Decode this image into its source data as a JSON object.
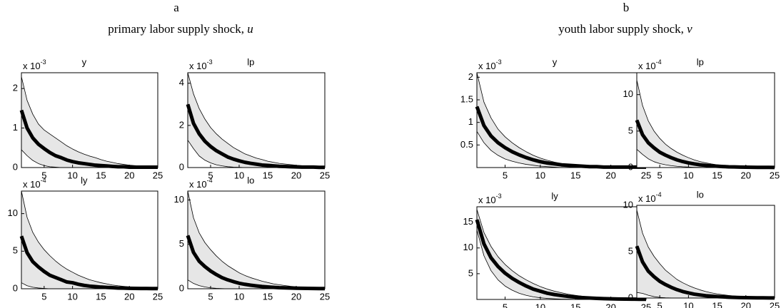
{
  "panels": [
    {
      "label": "a",
      "title": "primary labor supply shock, ",
      "title_var": "u"
    },
    {
      "label": "b",
      "title": "youth labor supply shock, ",
      "title_var": "v"
    }
  ],
  "chart_data": [
    {
      "type": "line",
      "title": "y",
      "scale_text": "x 10",
      "scale_exponent": "-3",
      "x": [
        1,
        2,
        3,
        4,
        5,
        6,
        7,
        8,
        9,
        10,
        11,
        12,
        13,
        14,
        15,
        16,
        17,
        18,
        19,
        20,
        21,
        22,
        23,
        24,
        25
      ],
      "xlim": [
        1,
        25
      ],
      "xticks": [
        5,
        10,
        15,
        20,
        25
      ],
      "ylim": [
        0,
        2.4
      ],
      "yticks": [
        0,
        1,
        2
      ],
      "series": [
        {
          "color": "#000000",
          "values": [
            1.45,
            1.0,
            0.75,
            0.59,
            0.48,
            0.38,
            0.3,
            0.25,
            0.19,
            0.15,
            0.12,
            0.1,
            0.08,
            0.06,
            0.05,
            0.04,
            0.03,
            0.02,
            0.02,
            0.01,
            0.01,
            0.01,
            0.01,
            0.01,
            0.01
          ]
        }
      ],
      "band": {
        "color": "#e6e6e6",
        "upper": [
          2.3,
          1.7,
          1.35,
          1.1,
          0.95,
          0.85,
          0.75,
          0.65,
          0.55,
          0.47,
          0.4,
          0.34,
          0.29,
          0.25,
          0.2,
          0.16,
          0.13,
          0.1,
          0.08,
          0.06,
          0.05,
          0.04,
          0.03,
          0.02,
          0.02
        ],
        "lower": [
          0.45,
          0.3,
          0.18,
          0.1,
          0.05,
          0.02,
          0.01,
          0,
          0,
          0,
          0,
          0,
          0,
          0,
          0,
          0,
          0,
          0,
          0,
          0,
          0,
          0,
          0,
          0,
          0
        ]
      }
    },
    {
      "type": "line",
      "title": "lp",
      "scale_text": "x 10",
      "scale_exponent": "-3",
      "x": [
        1,
        2,
        3,
        4,
        5,
        6,
        7,
        8,
        9,
        10,
        11,
        12,
        13,
        14,
        15,
        16,
        17,
        18,
        19,
        20,
        21,
        22,
        23,
        24,
        25
      ],
      "xlim": [
        1,
        25
      ],
      "xticks": [
        5,
        10,
        15,
        20,
        25
      ],
      "ylim": [
        0,
        4.5
      ],
      "yticks": [
        0,
        2,
        4
      ],
      "series": [
        {
          "color": "#000000",
          "values": [
            3.0,
            2.1,
            1.6,
            1.25,
            1.0,
            0.8,
            0.65,
            0.5,
            0.4,
            0.32,
            0.25,
            0.2,
            0.16,
            0.12,
            0.1,
            0.08,
            0.06,
            0.05,
            0.04,
            0.03,
            0.02,
            0.02,
            0.02,
            0.01,
            0.01
          ]
        }
      ],
      "band": {
        "color": "#e6e6e6",
        "upper": [
          4.5,
          3.5,
          2.8,
          2.3,
          1.9,
          1.6,
          1.35,
          1.15,
          0.95,
          0.8,
          0.65,
          0.55,
          0.45,
          0.38,
          0.3,
          0.25,
          0.2,
          0.17,
          0.14,
          0.11,
          0.09,
          0.07,
          0.05,
          0.04,
          0.03
        ],
        "lower": [
          1.3,
          0.9,
          0.55,
          0.35,
          0.22,
          0.13,
          0.08,
          0.04,
          0.02,
          0.01,
          0,
          0,
          0,
          0,
          0,
          0,
          0,
          0,
          0,
          0,
          0,
          0,
          0,
          0,
          0
        ]
      }
    },
    {
      "type": "line",
      "title": "ly",
      "scale_text": "x 10",
      "scale_exponent": "-4",
      "x": [
        1,
        2,
        3,
        4,
        5,
        6,
        7,
        8,
        9,
        10,
        11,
        12,
        13,
        14,
        15,
        16,
        17,
        18,
        19,
        20,
        21,
        22,
        23,
        24,
        25
      ],
      "xlim": [
        1,
        25
      ],
      "xticks": [
        5,
        10,
        15,
        20,
        25
      ],
      "ylim": [
        0,
        13
      ],
      "yticks": [
        0,
        5,
        10
      ],
      "series": [
        {
          "color": "#000000",
          "values": [
            7,
            4.8,
            3.6,
            2.9,
            2.3,
            1.8,
            1.5,
            1.2,
            0.9,
            0.8,
            0.6,
            0.45,
            0.35,
            0.28,
            0.22,
            0.18,
            0.14,
            0.1,
            0.08,
            0.06,
            0.05,
            0.04,
            0.03,
            0.02,
            0.02
          ]
        }
      ],
      "band": {
        "color": "#e6e6e6",
        "upper": [
          13,
          9.5,
          7.5,
          6.2,
          5.2,
          4.4,
          3.7,
          3.1,
          2.6,
          2.2,
          1.8,
          1.5,
          1.2,
          1,
          0.8,
          0.65,
          0.5,
          0.4,
          0.32,
          0.25,
          0.2,
          0.15,
          0.12,
          0.1,
          0.08
        ],
        "lower": [
          0.8,
          0.4,
          0.2,
          0.1,
          0.05,
          0,
          0,
          0,
          0,
          0,
          0,
          0,
          0,
          0,
          0,
          0,
          0,
          0,
          0,
          0,
          0,
          0,
          0,
          0,
          0
        ]
      }
    },
    {
      "type": "line",
      "title": "lo",
      "scale_text": "x 10",
      "scale_exponent": "-4",
      "x": [
        1,
        2,
        3,
        4,
        5,
        6,
        7,
        8,
        9,
        10,
        11,
        12,
        13,
        14,
        15,
        16,
        17,
        18,
        19,
        20,
        21,
        22,
        23,
        24,
        25
      ],
      "xlim": [
        1,
        25
      ],
      "xticks": [
        5,
        10,
        15,
        20,
        25
      ],
      "ylim": [
        0,
        11
      ],
      "yticks": [
        0,
        5,
        10
      ],
      "series": [
        {
          "color": "#000000",
          "values": [
            6,
            4.1,
            3.1,
            2.5,
            2.0,
            1.6,
            1.25,
            1.0,
            0.8,
            0.62,
            0.5,
            0.4,
            0.32,
            0.25,
            0.2,
            0.16,
            0.12,
            0.1,
            0.08,
            0.06,
            0.05,
            0.04,
            0.03,
            0.02,
            0.02
          ]
        }
      ],
      "band": {
        "color": "#e6e6e6",
        "upper": [
          11,
          8,
          6.3,
          5.2,
          4.4,
          3.7,
          3.1,
          2.6,
          2.2,
          1.8,
          1.5,
          1.25,
          1.05,
          0.85,
          0.7,
          0.55,
          0.45,
          0.36,
          0.28,
          0.22,
          0.18,
          0.14,
          0.11,
          0.09,
          0.07
        ],
        "lower": [
          1.0,
          0.6,
          0.35,
          0.2,
          0.1,
          0.05,
          0.02,
          0,
          0,
          0,
          0,
          0,
          0,
          0,
          0,
          0,
          0,
          0,
          0,
          0,
          0,
          0,
          0,
          0,
          0
        ]
      }
    },
    {
      "type": "line",
      "title": "y",
      "scale_text": "x 10",
      "scale_exponent": "-3",
      "x": [
        1,
        2,
        3,
        4,
        5,
        6,
        7,
        8,
        9,
        10,
        11,
        12,
        13,
        14,
        15,
        16,
        17,
        18,
        19,
        20,
        21,
        22,
        23,
        24,
        25
      ],
      "xlim": [
        1,
        25
      ],
      "xticks": [
        5,
        10,
        15,
        20,
        25
      ],
      "ylim": [
        0,
        2.1
      ],
      "yticks": [
        0.5,
        1,
        1.5,
        2
      ],
      "series": [
        {
          "color": "#000000",
          "values": [
            1.35,
            0.93,
            0.7,
            0.55,
            0.44,
            0.35,
            0.28,
            0.22,
            0.17,
            0.13,
            0.1,
            0.08,
            0.06,
            0.05,
            0.04,
            0.03,
            0.02,
            0.02,
            0.01,
            0.01,
            0.01,
            0.01,
            0.01,
            0.01,
            0.01
          ]
        }
      ],
      "band": {
        "color": "#e6e6e6",
        "upper": [
          2.1,
          1.45,
          1.1,
          0.85,
          0.68,
          0.55,
          0.44,
          0.35,
          0.27,
          0.21,
          0.16,
          0.12,
          0.09,
          0.07,
          0.05,
          0.04,
          0.03,
          0.02,
          0.02,
          0.01,
          0.01,
          0.01,
          0.01,
          0.01,
          0.01
        ],
        "lower": [
          0.8,
          0.55,
          0.38,
          0.27,
          0.19,
          0.14,
          0.1,
          0.07,
          0.05,
          0.03,
          0.02,
          0.01,
          0,
          0,
          0,
          0,
          0,
          0,
          0,
          0,
          0,
          0,
          0,
          0,
          0
        ]
      }
    },
    {
      "type": "line",
      "title": "lp",
      "scale_text": "x 10",
      "scale_exponent": "-4",
      "x": [
        1,
        2,
        3,
        4,
        5,
        6,
        7,
        8,
        9,
        10,
        11,
        12,
        13,
        14,
        15,
        16,
        17,
        18,
        19,
        20,
        21,
        22,
        23,
        24,
        25
      ],
      "xlim": [
        1,
        25
      ],
      "xticks": [
        5,
        10,
        15,
        20,
        25
      ],
      "ylim": [
        0,
        13
      ],
      "yticks": [
        0,
        5,
        10
      ],
      "series": [
        {
          "color": "#000000",
          "values": [
            6.5,
            4.5,
            3.4,
            2.7,
            2.1,
            1.7,
            1.35,
            1.05,
            0.82,
            0.64,
            0.5,
            0.38,
            0.3,
            0.23,
            0.18,
            0.14,
            0.1,
            0.08,
            0.06,
            0.05,
            0.04,
            0.03,
            0.02,
            0.02,
            0.01
          ]
        }
      ],
      "band": {
        "color": "#e6e6e6",
        "upper": [
          12,
          8.5,
          6.4,
          5,
          4,
          3.2,
          2.6,
          2.1,
          1.7,
          1.35,
          1.05,
          0.82,
          0.64,
          0.5,
          0.38,
          0.3,
          0.23,
          0.18,
          0.14,
          0.1,
          0.08,
          0.06,
          0.05,
          0.04,
          0.03
        ],
        "lower": [
          2.5,
          1.8,
          1.2,
          0.8,
          0.55,
          0.38,
          0.26,
          0.17,
          0.11,
          0.07,
          0.04,
          0.02,
          0.01,
          0,
          0,
          0,
          0,
          0,
          0,
          0,
          0,
          0,
          0,
          0,
          0
        ]
      }
    },
    {
      "type": "line",
      "title": "ly",
      "scale_text": "x 10",
      "scale_exponent": "-3",
      "x": [
        1,
        2,
        3,
        4,
        5,
        6,
        7,
        8,
        9,
        10,
        11,
        12,
        13,
        14,
        15,
        16,
        17,
        18,
        19,
        20,
        21,
        22,
        23,
        24,
        25
      ],
      "xlim": [
        1,
        25
      ],
      "xticks": [
        5,
        10,
        15,
        20,
        25
      ],
      "ylim": [
        0,
        18
      ],
      "yticks": [
        5,
        10,
        15
      ],
      "series": [
        {
          "color": "#000000",
          "values": [
            15.5,
            10.8,
            8.1,
            6.4,
            5.1,
            4.1,
            3.3,
            2.6,
            2.0,
            1.6,
            1.2,
            0.95,
            0.75,
            0.58,
            0.45,
            0.35,
            0.27,
            0.2,
            0.16,
            0.12,
            0.09,
            0.07,
            0.05,
            0.04,
            0.03
          ]
        }
      ],
      "band": {
        "color": "#e6e6e6",
        "upper": [
          17.5,
          13,
          10.3,
          8.3,
          6.8,
          5.6,
          4.6,
          3.8,
          3.1,
          2.5,
          2.0,
          1.6,
          1.3,
          1.0,
          0.8,
          0.62,
          0.48,
          0.37,
          0.28,
          0.21,
          0.16,
          0.12,
          0.09,
          0.07,
          0.05
        ],
        "lower": [
          13.5,
          8.5,
          5.6,
          3.8,
          2.6,
          1.8,
          1.2,
          0.8,
          0.5,
          0.32,
          0.2,
          0.12,
          0.07,
          0.04,
          0.02,
          0.01,
          0,
          0,
          0,
          0,
          0,
          0,
          0,
          0,
          0
        ]
      }
    },
    {
      "type": "line",
      "title": "lo",
      "scale_text": "x 10",
      "scale_exponent": "-4",
      "x": [
        1,
        2,
        3,
        4,
        5,
        6,
        7,
        8,
        9,
        10,
        11,
        12,
        13,
        14,
        15,
        16,
        17,
        18,
        19,
        20,
        21,
        22,
        23,
        24,
        25
      ],
      "xlim": [
        1,
        25
      ],
      "xticks": [
        5,
        10,
        15,
        20,
        25
      ],
      "ylim": [
        0,
        10
      ],
      "yticks": [
        0,
        5,
        10
      ],
      "series": [
        {
          "color": "#000000",
          "values": [
            5.6,
            3.9,
            2.9,
            2.3,
            1.8,
            1.45,
            1.15,
            0.9,
            0.7,
            0.55,
            0.42,
            0.33,
            0.25,
            0.2,
            0.15,
            0.12,
            0.09,
            0.07,
            0.05,
            0.04,
            0.03,
            0.02,
            0.02,
            0.01,
            0.01
          ]
        }
      ],
      "band": {
        "color": "#e6e6e6",
        "upper": [
          9.5,
          7,
          5.5,
          4.5,
          3.7,
          3.0,
          2.5,
          2.0,
          1.65,
          1.35,
          1.1,
          0.88,
          0.7,
          0.56,
          0.44,
          0.35,
          0.28,
          0.22,
          0.17,
          0.13,
          0.1,
          0.08,
          0.06,
          0.05,
          0.04
        ],
        "lower": [
          0.6,
          0.5,
          0.3,
          0.15,
          0.07,
          0.03,
          0.01,
          0,
          0,
          0,
          0,
          0,
          0,
          0,
          0,
          0,
          0,
          0,
          0,
          0,
          0,
          0,
          0,
          0,
          0
        ]
      }
    }
  ]
}
